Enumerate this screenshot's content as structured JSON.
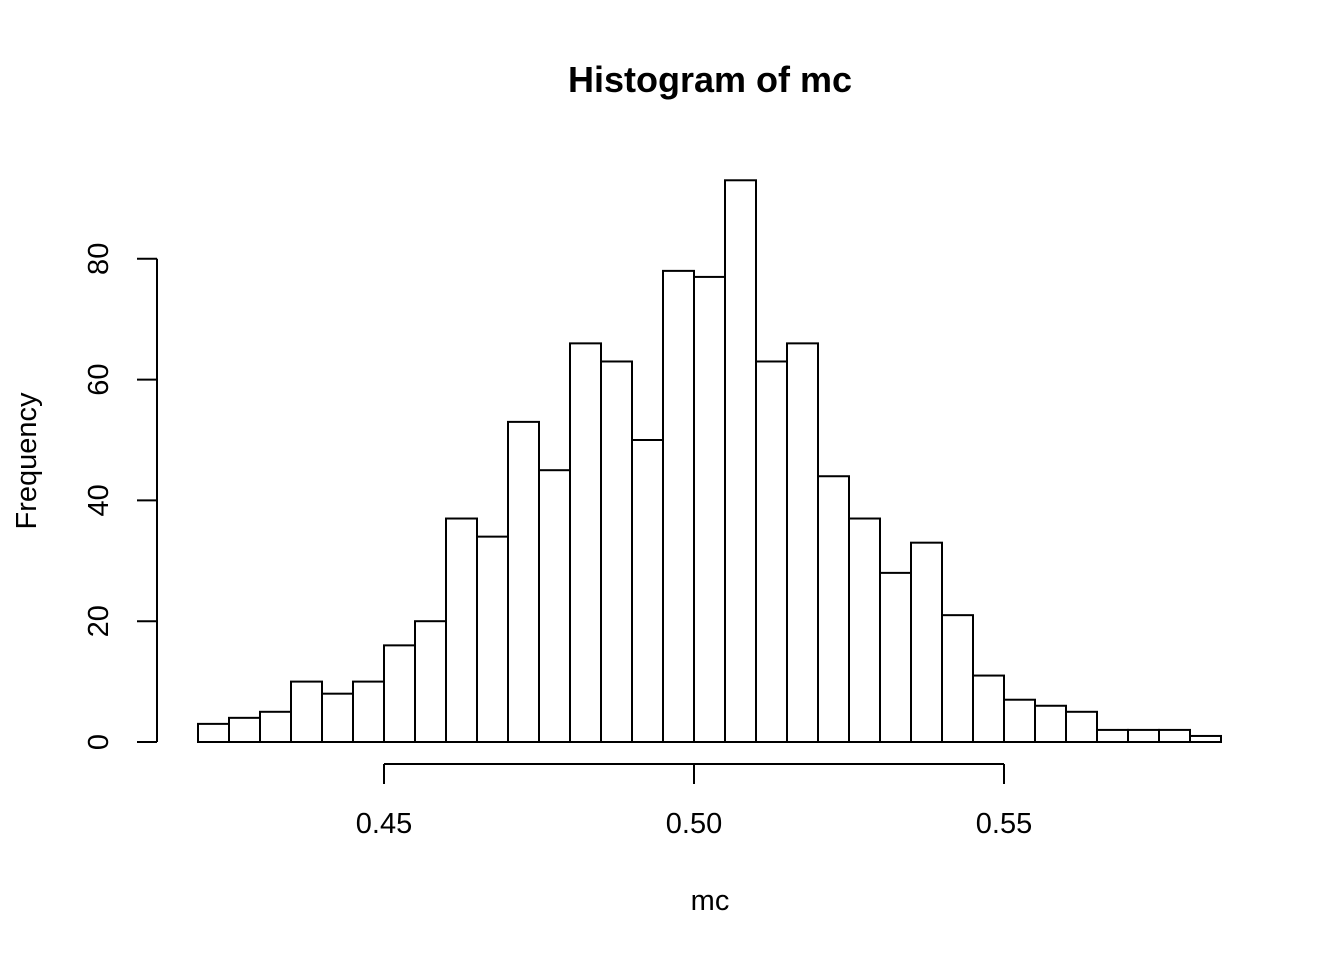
{
  "chart_data": {
    "type": "bar",
    "title": "Histogram of mc",
    "xlabel": "mc",
    "ylabel": "Frequency",
    "bin_width": 0.005,
    "bin_start": 0.42,
    "values": [
      3,
      4,
      5,
      10,
      8,
      10,
      16,
      20,
      37,
      34,
      53,
      45,
      66,
      63,
      50,
      78,
      77,
      93,
      63,
      66,
      44,
      37,
      28,
      33,
      21,
      11,
      7,
      6,
      5,
      2,
      2,
      2,
      1
    ],
    "x_ticks": [
      0.45,
      0.5,
      0.55
    ],
    "x_tick_labels": [
      "0.45",
      "0.50",
      "0.55"
    ],
    "y_ticks": [
      0,
      20,
      40,
      60,
      80
    ],
    "y_tick_labels": [
      "0",
      "20",
      "40",
      "60",
      "80"
    ],
    "xlim": [
      0.42,
      0.585
    ],
    "ylim": [
      0,
      93
    ],
    "grid": false,
    "bar_fill": "#ffffff",
    "bar_stroke": "#000000"
  }
}
